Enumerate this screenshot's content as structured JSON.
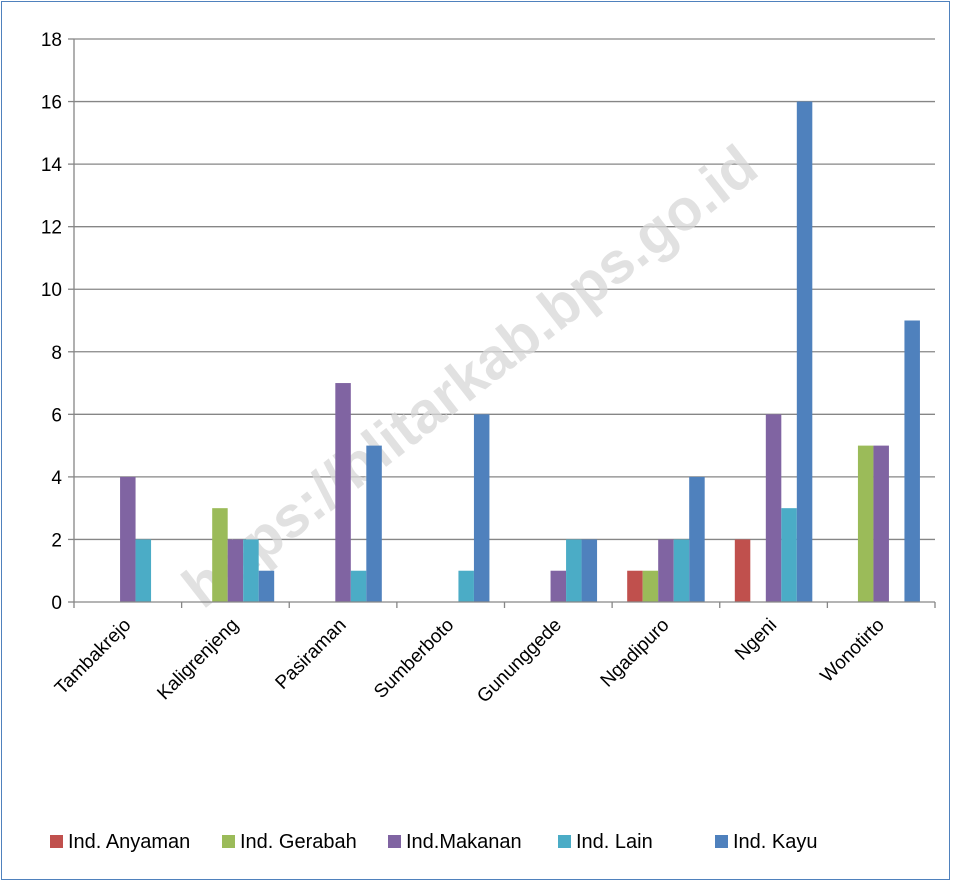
{
  "watermark": "https://blitarkab.bps.go.id",
  "chart_data": {
    "type": "bar",
    "categories": [
      "Tambakrejo",
      "Kaligrenjeng",
      "Pasiraman",
      "Sumberboto",
      "Gununggede",
      "Ngadipuro",
      "Ngeni",
      "Wonotirto"
    ],
    "series": [
      {
        "name": "Ind. Anyaman",
        "color": "#c0504d",
        "values": [
          0,
          0,
          0,
          0,
          0,
          1,
          2,
          0
        ]
      },
      {
        "name": "Ind. Gerabah",
        "color": "#9bbb59",
        "values": [
          0,
          3,
          0,
          0,
          0,
          1,
          0,
          5
        ]
      },
      {
        "name": "Ind.Makanan",
        "color": "#8064a2",
        "values": [
          4,
          2,
          7,
          0,
          1,
          2,
          6,
          5
        ]
      },
      {
        "name": "Ind. Lain",
        "color": "#4bacc6",
        "values": [
          2,
          2,
          1,
          1,
          2,
          2,
          3,
          0
        ]
      },
      {
        "name": "Ind. Kayu",
        "color": "#4f81bd",
        "values": [
          0,
          1,
          5,
          6,
          2,
          4,
          16,
          9
        ]
      }
    ],
    "ylim": [
      0,
      18
    ],
    "yticks": [
      "0",
      "2",
      "4",
      "6",
      "8",
      "10",
      "12",
      "14",
      "16",
      "18"
    ],
    "grid": true,
    "legend": "bottom"
  }
}
